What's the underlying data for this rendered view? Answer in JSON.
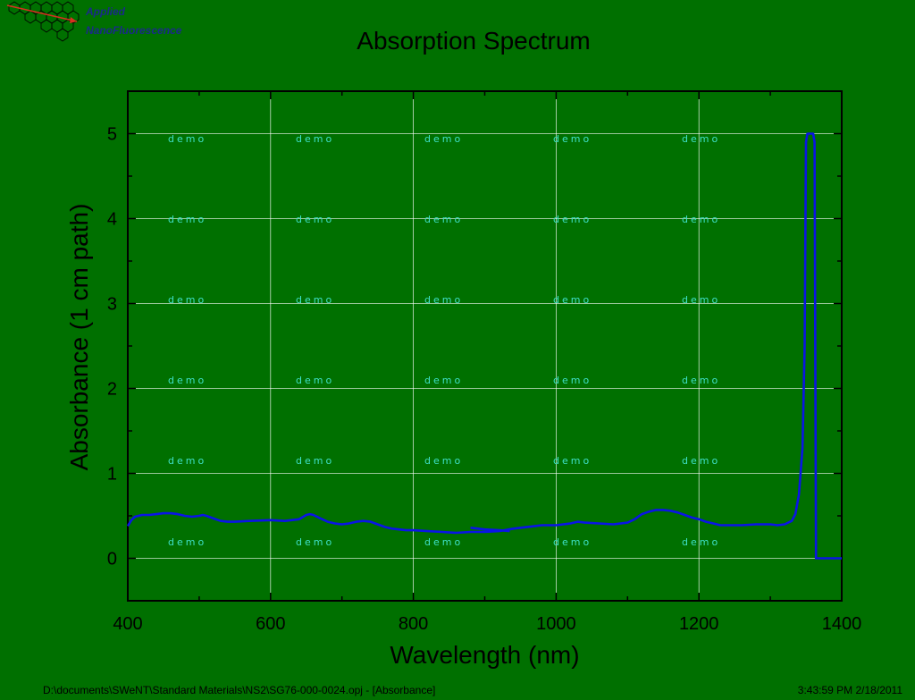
{
  "logo": {
    "line1": "Applied",
    "line2": "NanoFluorescence"
  },
  "chart_data": {
    "type": "line",
    "title": "Absorption Spectrum",
    "xlabel": "Wavelength (nm)",
    "ylabel": "Absorbance (1 cm path)",
    "xlim": [
      400,
      1400
    ],
    "ylim": [
      -0.5,
      5.5
    ],
    "xticks": [
      400,
      600,
      800,
      1000,
      1200,
      1400
    ],
    "yticks": [
      0,
      1,
      2,
      3,
      4,
      5
    ],
    "grid": true,
    "watermark": "demo",
    "series": [
      {
        "color": "#0a14e6",
        "x": [
          400,
          405,
          410,
          420,
          430,
          440,
          450,
          460,
          470,
          480,
          490,
          500,
          505,
          510,
          520,
          530,
          540,
          550,
          570,
          600,
          620,
          640,
          650,
          655,
          660,
          670,
          680,
          690,
          700,
          710,
          720,
          730,
          740,
          750,
          760,
          770,
          780,
          790,
          800,
          820,
          840,
          860,
          880,
          900,
          920,
          940,
          960,
          980,
          1000,
          1020,
          1030,
          1040,
          1060,
          1080,
          1100,
          1110,
          1120,
          1130,
          1140,
          1150,
          1160,
          1170,
          1180,
          1190,
          1200,
          1210,
          1220,
          1230,
          1240,
          1260,
          1280,
          1300,
          1310,
          1320,
          1330,
          1335,
          1340,
          1345,
          1348,
          1350,
          1352,
          1354,
          1356,
          1358,
          1360,
          1362,
          1363,
          1364,
          1366,
          1380,
          1400
        ],
        "y": [
          0.38,
          0.45,
          0.49,
          0.51,
          0.51,
          0.52,
          0.53,
          0.53,
          0.52,
          0.5,
          0.49,
          0.5,
          0.51,
          0.5,
          0.47,
          0.44,
          0.43,
          0.43,
          0.44,
          0.45,
          0.44,
          0.46,
          0.51,
          0.52,
          0.51,
          0.47,
          0.43,
          0.41,
          0.4,
          0.41,
          0.43,
          0.44,
          0.43,
          0.4,
          0.37,
          0.35,
          0.34,
          0.33,
          0.33,
          0.32,
          0.31,
          0.3,
          0.31,
          0.31,
          0.32,
          0.35,
          0.37,
          0.39,
          0.39,
          0.41,
          0.43,
          0.42,
          0.41,
          0.4,
          0.42,
          0.46,
          0.52,
          0.55,
          0.57,
          0.57,
          0.56,
          0.54,
          0.51,
          0.48,
          0.46,
          0.43,
          0.41,
          0.39,
          0.39,
          0.39,
          0.4,
          0.4,
          0.39,
          0.4,
          0.44,
          0.52,
          0.75,
          1.3,
          2.5,
          4.9,
          5.0,
          5.0,
          5.0,
          5.0,
          5.0,
          4.9,
          2.5,
          0.0,
          0.0,
          0.0,
          0.0
        ]
      },
      {
        "color": "#0a14e6",
        "x": [
          880,
          900,
          920,
          935
        ],
        "y": [
          0.36,
          0.34,
          0.33,
          0.32
        ]
      }
    ]
  },
  "footer": {
    "path": "D:\\documents\\SWeNT\\Standard Materials\\NS2\\SG76-000-0024.opj - [Absorbance]",
    "timestamp": "3:43:59 PM  2/18/2011"
  }
}
